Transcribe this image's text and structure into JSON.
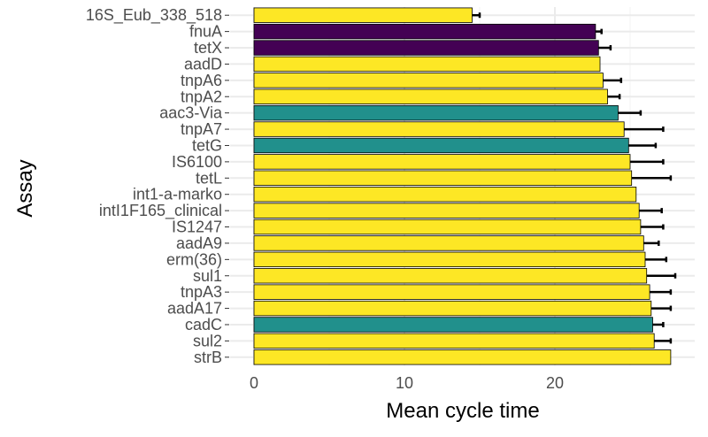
{
  "chart_data": {
    "type": "bar",
    "orientation": "horizontal",
    "xlabel": "Mean cycle time",
    "ylabel": "Assay",
    "xlim": [
      0,
      28
    ],
    "xticks": [
      0,
      10,
      20
    ],
    "grid": true,
    "legend": "none",
    "colors": {
      "yellow": "#FDE725",
      "purple": "#440154",
      "teal": "#21908C"
    },
    "categories": [
      "16S_Eub_338_518",
      "fnuA",
      "tetX",
      "aadD",
      "tnpA6",
      "tnpA2",
      "aac3-Via",
      "tnpA7",
      "tetG",
      "IS6100",
      "tetL",
      "int1-a-marko",
      "intI1F165_clinical",
      "IS1247",
      "aadA9",
      "erm(36)",
      "sul1",
      "tnpA3",
      "aadA17",
      "cadC",
      "sul2",
      "strB"
    ],
    "values": [
      14.5,
      22.7,
      22.9,
      23.0,
      23.2,
      23.5,
      24.2,
      24.6,
      24.9,
      25.0,
      25.1,
      25.4,
      25.6,
      25.7,
      25.9,
      26.0,
      26.1,
      26.3,
      26.4,
      26.5,
      26.6,
      27.7
    ],
    "error": [
      0.5,
      0.4,
      0.8,
      0.0,
      1.2,
      0.8,
      1.5,
      2.6,
      1.8,
      2.2,
      2.6,
      0.0,
      1.5,
      1.5,
      1.0,
      1.4,
      1.9,
      1.4,
      1.3,
      0.7,
      1.1,
      0.0
    ],
    "bar_colors": [
      "yellow",
      "purple",
      "purple",
      "yellow",
      "yellow",
      "yellow",
      "teal",
      "yellow",
      "teal",
      "yellow",
      "yellow",
      "yellow",
      "yellow",
      "yellow",
      "yellow",
      "yellow",
      "yellow",
      "yellow",
      "yellow",
      "teal",
      "yellow",
      "yellow"
    ]
  }
}
